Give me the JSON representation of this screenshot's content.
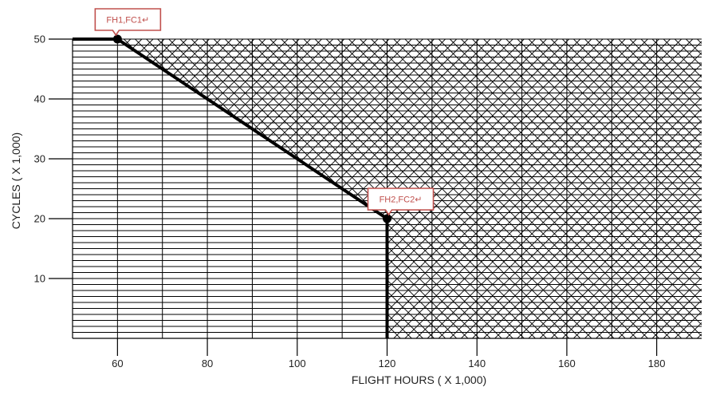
{
  "chart_data": {
    "type": "line",
    "xlabel": "FLIGHT HOURS ( X 1,000)",
    "ylabel": "CYCLES ( X 1,000)",
    "xlim": [
      50,
      190
    ],
    "ylim": [
      0,
      50
    ],
    "x_ticks": [
      60,
      80,
      100,
      120,
      140,
      160,
      180
    ],
    "y_ticks": [
      10,
      20,
      30,
      40,
      50
    ],
    "grid": "horizontal lines every 1,000 cycles, vertical lines every 10,000 flight hours",
    "series": [
      {
        "x": [
          50,
          60,
          120,
          120
        ],
        "y": [
          50,
          50,
          20,
          0
        ],
        "style": "boundary"
      }
    ],
    "points": [
      {
        "label": "FH1,FC1↵",
        "x": 60,
        "y": 50
      },
      {
        "label": "FH2,FC2↵",
        "x": 120,
        "y": 20
      }
    ],
    "region_above_boundary": "cross-hatched",
    "colors": {
      "grid": "#000000",
      "boundary": "#000000",
      "callout_border": "#c0504d",
      "callout_text": "#c0504d"
    }
  }
}
